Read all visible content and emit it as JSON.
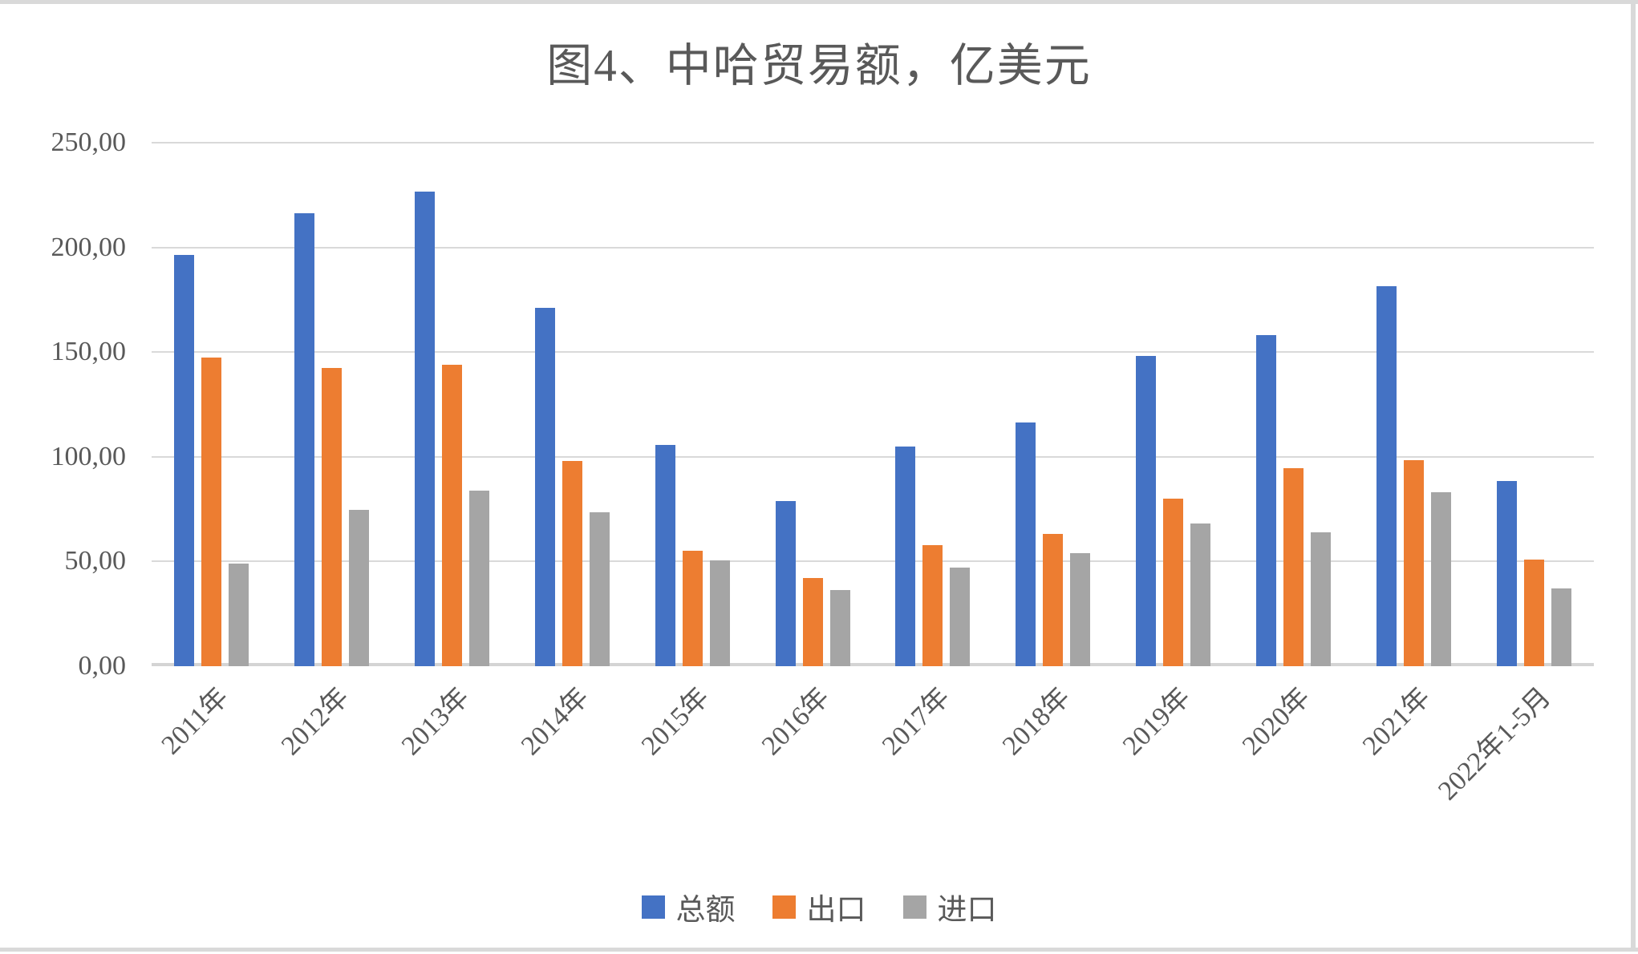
{
  "chart_data": {
    "type": "bar",
    "title": "图4、中哈贸易额，亿美元",
    "categories": [
      "2011年",
      "2012年",
      "2013年",
      "2014年",
      "2015年",
      "2016年",
      "2017年",
      "2018年",
      "2019年",
      "2020年",
      "2021年",
      "2022年1-5月"
    ],
    "series": [
      {
        "key": "total",
        "name": "总额",
        "color": "#4472C4",
        "values": [
          196.5,
          216.5,
          226.5,
          171.0,
          105.5,
          79.0,
          105.0,
          116.5,
          148.0,
          158.0,
          181.5,
          88.5
        ]
      },
      {
        "key": "export",
        "name": "出口",
        "color": "#ED7D31",
        "values": [
          147.5,
          142.5,
          144.0,
          98.0,
          55.0,
          42.0,
          58.0,
          63.0,
          80.0,
          94.5,
          98.5,
          51.0
        ]
      },
      {
        "key": "import",
        "name": "进口",
        "color": "#A5A5A5",
        "values": [
          49.0,
          74.5,
          84.0,
          73.5,
          50.5,
          36.5,
          47.0,
          54.0,
          68.0,
          64.0,
          83.0,
          37.0
        ]
      }
    ],
    "ylim": [
      0,
      250
    ],
    "ytick_step": 50,
    "ytick_labels": [
      "0,00",
      "50,00",
      "100,00",
      "150,00",
      "200,00",
      "250,00"
    ],
    "grid": true,
    "legend_position": "bottom",
    "colors": {
      "gridline": "#d9d9d9",
      "axis_line": "#d4d4d4",
      "text": "#595959",
      "page_border": "#d9d9d9"
    }
  }
}
